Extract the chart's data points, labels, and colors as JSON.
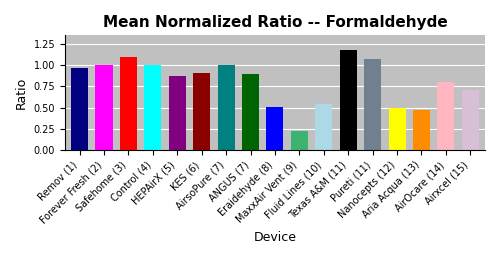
{
  "title": "Mean Normalized Ratio -- Formaldehyde",
  "xlabel": "Device",
  "ylabel": "Ratio",
  "categories": [
    "Remov (1)",
    "Forever Fresh (2)",
    "Safehome (3)",
    "Control (4)",
    "HEPAirX (5)",
    "KES (6)",
    "AirsoPure (7)",
    "ANGUS (7)",
    "Eraidehyde (8)",
    "MaxxAir Vent (9)",
    "Fluid Lines (10)",
    "Texas A&M (11)",
    "Pureti (11)",
    "Nanocepts (12)",
    "Aria Acqua (13)",
    "AirOcare (14)",
    "Airxcel (15)"
  ],
  "values": [
    0.96,
    1.0,
    1.1,
    1.0,
    0.87,
    0.91,
    1.0,
    0.9,
    0.51,
    0.22,
    0.54,
    1.18,
    1.07,
    0.5,
    0.47,
    0.8,
    0.71
  ],
  "colors": [
    "#000080",
    "#FF00FF",
    "#FF0000",
    "#00FFFF",
    "#800080",
    "#8B0000",
    "#008080",
    "#006400",
    "#0000FF",
    "#3CB371",
    "#ADD8E6",
    "#000000",
    "#708090",
    "#FFFF00",
    "#FF8C00",
    "#FFB6C1",
    "#D8BFD8"
  ],
  "ylim": [
    0,
    1.35
  ],
  "yticks": [
    0,
    0.25,
    0.5,
    0.75,
    1.0,
    1.25
  ],
  "bg_color": "#C0C0C0",
  "title_fontsize": 11,
  "axis_label_fontsize": 9,
  "tick_fontsize": 7
}
